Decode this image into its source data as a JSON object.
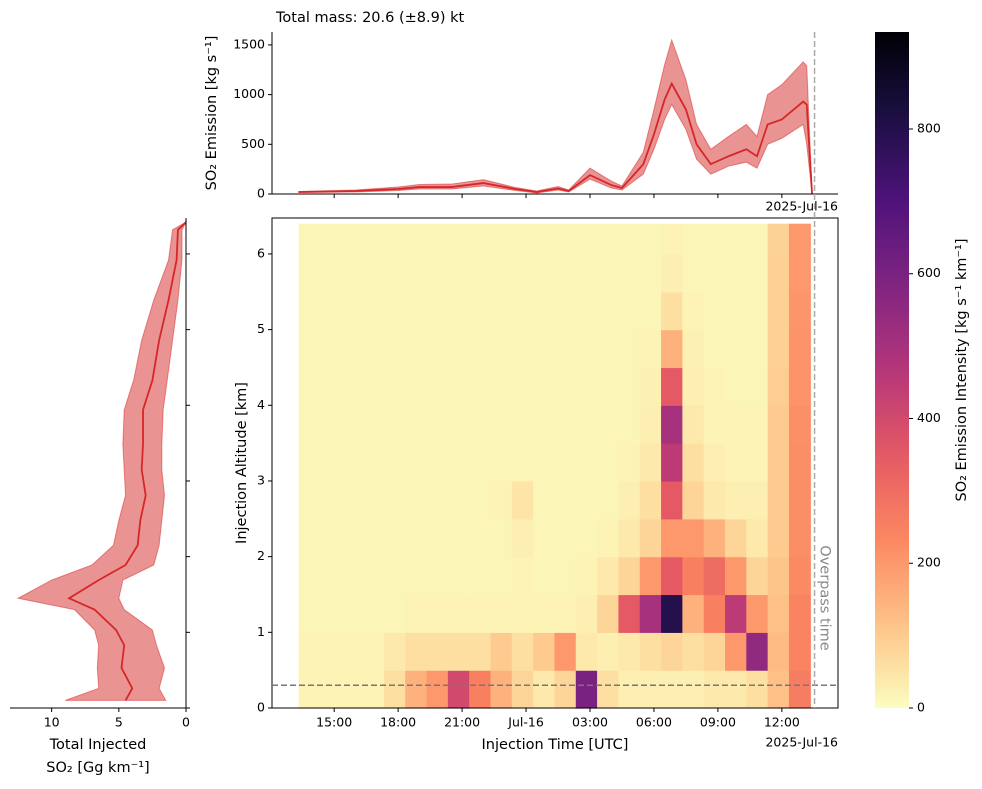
{
  "chart_data": [
    {
      "type": "line",
      "title": "Total mass: 20.6 (±8.9) kt",
      "ylabel": "SO₂ Emission [kg s⁻¹]",
      "x_offset_label": "2025-Jul-16",
      "x": [
        "2025-07-15T13:20",
        "2025-07-15T16:00",
        "2025-07-15T18:00",
        "2025-07-15T19:00",
        "2025-07-15T20:30",
        "2025-07-15T22:00",
        "2025-07-15T23:30",
        "2025-07-16T00:30",
        "2025-07-16T01:30",
        "2025-07-16T02:00",
        "2025-07-16T03:00",
        "2025-07-16T04:00",
        "2025-07-16T04:30",
        "2025-07-16T05:30",
        "2025-07-16T06:00",
        "2025-07-16T06:30",
        "2025-07-16T06:50",
        "2025-07-16T07:30",
        "2025-07-16T08:00",
        "2025-07-16T08:40",
        "2025-07-16T09:30",
        "2025-07-16T10:20",
        "2025-07-16T10:50",
        "2025-07-16T11:20",
        "2025-07-16T12:00",
        "2025-07-16T13:00",
        "2025-07-16T13:10",
        "2025-07-16T13:25"
      ],
      "series": [
        {
          "color": "#d62728",
          "values": [
            20,
            30,
            50,
            70,
            70,
            110,
            50,
            20,
            55,
            30,
            190,
            90,
            60,
            300,
            600,
            950,
            1110,
            850,
            500,
            300,
            380,
            450,
            380,
            700,
            750,
            930,
            900,
            0
          ]
        }
      ],
      "band": {
        "color": "#d62728",
        "alpha": 0.5,
        "lower": [
          15,
          20,
          35,
          50,
          50,
          80,
          35,
          10,
          40,
          20,
          150,
          60,
          40,
          200,
          450,
          750,
          900,
          650,
          350,
          200,
          280,
          320,
          260,
          500,
          560,
          700,
          500,
          0
        ],
        "upper": [
          25,
          40,
          70,
          95,
          100,
          145,
          65,
          30,
          75,
          40,
          260,
          130,
          80,
          420,
          850,
          1300,
          1550,
          1150,
          700,
          450,
          580,
          700,
          580,
          1000,
          1100,
          1330,
          1290,
          0
        ]
      },
      "xlim": [
        "2025-07-15T12:05",
        "2025-07-16T14:38"
      ],
      "xticks": [
        "2025-07-15T15:00",
        "2025-07-15T18:00",
        "2025-07-15T21:00",
        "2025-07-16T00:00",
        "2025-07-16T03:00",
        "2025-07-16T06:00",
        "2025-07-16T09:00",
        "2025-07-16T12:00"
      ],
      "ylim": [
        0,
        1630
      ],
      "yticks": [
        0,
        500,
        1000,
        1500
      ]
    },
    {
      "type": "heatmap",
      "xlabel": "Injection Time [UTC]",
      "ylabel": "Injection Altitude [km]",
      "x_offset_label": "2025-Jul-16",
      "colormap": "magma_r",
      "x_edges": [
        "2025-07-15T13:20",
        "2025-07-15T14:20",
        "2025-07-15T15:20",
        "2025-07-15T16:20",
        "2025-07-15T17:20",
        "2025-07-15T18:20",
        "2025-07-15T19:20",
        "2025-07-15T20:20",
        "2025-07-15T21:20",
        "2025-07-15T22:20",
        "2025-07-15T23:20",
        "2025-07-16T00:20",
        "2025-07-16T01:20",
        "2025-07-16T02:20",
        "2025-07-16T03:20",
        "2025-07-16T04:20",
        "2025-07-16T05:20",
        "2025-07-16T06:20",
        "2025-07-16T07:20",
        "2025-07-16T08:20",
        "2025-07-16T09:20",
        "2025-07-16T10:20",
        "2025-07-16T11:20",
        "2025-07-16T12:20",
        "2025-07-16T13:20"
      ],
      "y_edges": [
        0,
        0.5,
        1,
        1.5,
        2,
        2.5,
        3,
        3.5,
        4,
        4.5,
        5,
        5.5,
        6,
        6.4
      ],
      "z": [
        [
          20,
          20,
          20,
          20,
          60,
          150,
          200,
          400,
          250,
          150,
          80,
          40,
          80,
          600,
          60,
          30,
          30,
          30,
          30,
          40,
          40,
          60,
          120,
          260
        ],
        [
          20,
          20,
          20,
          20,
          40,
          60,
          60,
          60,
          60,
          100,
          60,
          100,
          200,
          40,
          30,
          40,
          60,
          80,
          60,
          80,
          200,
          550,
          130,
          240
        ],
        [
          15,
          15,
          15,
          15,
          15,
          20,
          20,
          20,
          20,
          20,
          20,
          20,
          20,
          30,
          80,
          350,
          500,
          800,
          150,
          250,
          450,
          200,
          120,
          240
        ],
        [
          15,
          15,
          15,
          15,
          15,
          15,
          15,
          15,
          15,
          15,
          20,
          15,
          15,
          20,
          40,
          80,
          200,
          350,
          250,
          300,
          200,
          80,
          110,
          230
        ],
        [
          15,
          15,
          15,
          15,
          15,
          15,
          15,
          15,
          15,
          15,
          30,
          15,
          15,
          15,
          20,
          40,
          80,
          200,
          200,
          150,
          80,
          40,
          100,
          220
        ],
        [
          15,
          15,
          15,
          15,
          15,
          15,
          15,
          15,
          15,
          20,
          50,
          15,
          15,
          15,
          15,
          30,
          60,
          350,
          80,
          40,
          30,
          30,
          100,
          220
        ],
        [
          15,
          15,
          15,
          15,
          15,
          15,
          15,
          15,
          15,
          15,
          15,
          15,
          15,
          15,
          15,
          20,
          40,
          450,
          60,
          30,
          20,
          20,
          100,
          220
        ],
        [
          15,
          15,
          15,
          15,
          15,
          15,
          15,
          15,
          15,
          15,
          15,
          15,
          15,
          15,
          15,
          15,
          30,
          500,
          40,
          20,
          20,
          20,
          100,
          215
        ],
        [
          15,
          15,
          15,
          15,
          15,
          15,
          15,
          15,
          15,
          15,
          15,
          15,
          15,
          15,
          15,
          15,
          25,
          350,
          30,
          20,
          15,
          15,
          95,
          210
        ],
        [
          15,
          15,
          15,
          15,
          15,
          15,
          15,
          15,
          15,
          15,
          15,
          15,
          15,
          15,
          15,
          15,
          20,
          150,
          25,
          15,
          15,
          15,
          90,
          210
        ],
        [
          15,
          15,
          15,
          15,
          15,
          15,
          15,
          15,
          15,
          15,
          15,
          15,
          15,
          15,
          15,
          15,
          15,
          60,
          20,
          15,
          15,
          15,
          90,
          205
        ],
        [
          15,
          15,
          15,
          15,
          15,
          15,
          15,
          15,
          15,
          15,
          15,
          15,
          15,
          15,
          15,
          15,
          15,
          30,
          15,
          15,
          15,
          15,
          90,
          200
        ],
        [
          15,
          15,
          15,
          15,
          15,
          15,
          15,
          15,
          15,
          15,
          15,
          15,
          15,
          15,
          15,
          15,
          15,
          20,
          15,
          15,
          15,
          15,
          85,
          200
        ]
      ],
      "xlim": [
        "2025-07-15T12:05",
        "2025-07-16T14:38"
      ],
      "xticks": [
        {
          "value": "2025-07-15T15:00",
          "label": "15:00"
        },
        {
          "value": "2025-07-15T18:00",
          "label": "18:00"
        },
        {
          "value": "2025-07-15T21:00",
          "label": "21:00"
        },
        {
          "value": "2025-07-16T00:00",
          "label": "Jul-16"
        },
        {
          "value": "2025-07-16T03:00",
          "label": "03:00"
        },
        {
          "value": "2025-07-16T06:00",
          "label": "06:00"
        },
        {
          "value": "2025-07-16T09:00",
          "label": "09:00"
        },
        {
          "value": "2025-07-16T12:00",
          "label": "12:00"
        }
      ],
      "ylim": [
        0,
        6.475
      ],
      "yticks": [
        0,
        1,
        2,
        3,
        4,
        5,
        6
      ],
      "hline": 0.3,
      "vline": {
        "x": "2025-07-16T13:32",
        "label": "Overpass time"
      },
      "colorbar": {
        "label": "SO₂ Emission Intensity [kg s⁻¹ km⁻¹]",
        "lim": [
          0,
          934
        ],
        "ticks": [
          0,
          200,
          400,
          600,
          800
        ]
      }
    },
    {
      "type": "line",
      "orientation": "horizontal",
      "xlabel": [
        "Total Injected",
        "SO₂ [Gg km⁻¹]"
      ],
      "y": [
        0.1,
        0.26,
        0.53,
        0.83,
        1.03,
        1.3,
        1.45,
        1.69,
        1.89,
        2.15,
        2.48,
        2.81,
        3.15,
        3.48,
        3.94,
        4.33,
        4.86,
        5.39,
        5.92,
        6.32,
        6.42
      ],
      "series": [
        {
          "color": "#d62728",
          "values": [
            4.5,
            4.0,
            4.8,
            4.6,
            5.2,
            6.8,
            8.7,
            6.5,
            4.5,
            3.6,
            3.4,
            3.0,
            3.3,
            3.2,
            3.2,
            2.5,
            2.0,
            1.3,
            0.7,
            0.6,
            0
          ]
        }
      ],
      "band": {
        "color": "#d62728",
        "alpha": 0.5,
        "lower": [
          1.5,
          2.0,
          1.6,
          2.2,
          2.5,
          4.6,
          5.0,
          4.7,
          2.4,
          2.0,
          1.8,
          1.6,
          1.8,
          1.8,
          1.7,
          1.4,
          1.0,
          0.6,
          0.3,
          0.3,
          0
        ],
        "upper": [
          9.0,
          6.5,
          6.6,
          6.5,
          6.8,
          8.3,
          12.5,
          10.0,
          7.0,
          5.4,
          5.0,
          4.5,
          4.6,
          4.7,
          4.6,
          3.9,
          3.3,
          2.4,
          1.3,
          1.0,
          0
        ]
      },
      "xlim": [
        13.1,
        0
      ],
      "xticks": [
        10,
        5,
        0
      ],
      "ylim": [
        0,
        6.475
      ],
      "yticks": [
        0,
        1,
        2,
        3,
        4,
        5,
        6
      ]
    }
  ]
}
